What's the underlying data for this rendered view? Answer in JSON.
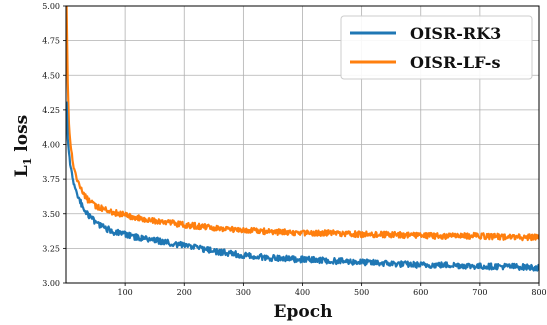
{
  "chart_data": {
    "type": "line",
    "xlabel": "Epoch",
    "ylabel": "L",
    "ylabel_sub": "1",
    "ylabel_suffix": " loss",
    "xlim": [
      0,
      800
    ],
    "ylim": [
      3.0,
      5.0
    ],
    "xticks": [
      100,
      200,
      300,
      400,
      500,
      600,
      700,
      800
    ],
    "yticks": [
      "3.00",
      "3.25",
      "3.50",
      "3.75",
      "4.00",
      "4.25",
      "4.50",
      "4.75",
      "5.00"
    ],
    "grid": true,
    "legend_position": "top-right",
    "colors": {
      "OISR-RK3": "#1f77b4",
      "OISR-LF-s": "#ff7f0e"
    },
    "series": [
      {
        "name": "OISR-RK3",
        "color": "#1f77b4",
        "x": [
          1,
          3,
          5,
          8,
          12,
          16,
          20,
          25,
          30,
          35,
          40,
          50,
          60,
          70,
          80,
          100,
          120,
          150,
          200,
          250,
          300,
          350,
          400,
          450,
          500,
          550,
          600,
          650,
          700,
          750,
          800
        ],
        "y": [
          4.3,
          4.05,
          3.93,
          3.83,
          3.74,
          3.68,
          3.63,
          3.58,
          3.54,
          3.51,
          3.48,
          3.44,
          3.41,
          3.39,
          3.37,
          3.35,
          3.33,
          3.31,
          3.27,
          3.23,
          3.2,
          3.18,
          3.17,
          3.16,
          3.15,
          3.14,
          3.13,
          3.13,
          3.12,
          3.12,
          3.11
        ]
      },
      {
        "name": "OISR-LF-s",
        "color": "#ff7f0e",
        "x": [
          1,
          3,
          5,
          8,
          12,
          16,
          20,
          25,
          30,
          35,
          40,
          50,
          60,
          70,
          80,
          100,
          120,
          150,
          200,
          250,
          300,
          350,
          400,
          450,
          500,
          550,
          600,
          650,
          700,
          750,
          800
        ],
        "y": [
          5.0,
          4.45,
          4.15,
          3.98,
          3.86,
          3.79,
          3.73,
          3.68,
          3.64,
          3.61,
          3.59,
          3.56,
          3.54,
          3.52,
          3.51,
          3.49,
          3.47,
          3.45,
          3.42,
          3.4,
          3.38,
          3.37,
          3.36,
          3.36,
          3.35,
          3.35,
          3.34,
          3.34,
          3.34,
          3.33,
          3.33
        ]
      }
    ]
  }
}
